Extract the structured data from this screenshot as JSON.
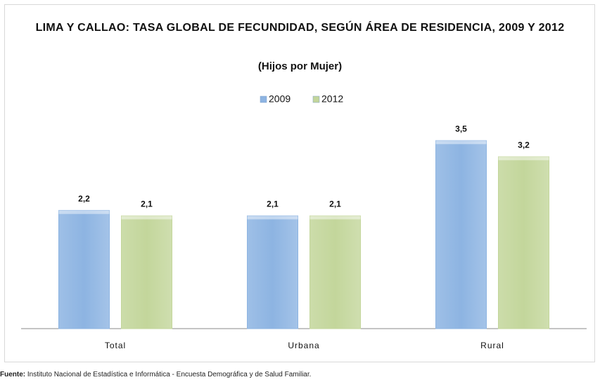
{
  "chart_data": {
    "type": "bar",
    "title": "LIMA Y CALLAO: TASA GLOBAL DE FECUNDIDAD, SEGÚN ÁREA DE RESIDENCIA, 2009 Y 2012",
    "subtitle": "(Hijos por Mujer)",
    "categories": [
      "Total",
      "Urbana",
      "Rural"
    ],
    "series": [
      {
        "name": "2009",
        "color": "#8db4e2",
        "values": [
          2.2,
          2.1,
          3.5
        ],
        "value_labels": [
          "2,2",
          "2,1",
          "3,5"
        ]
      },
      {
        "name": "2012",
        "color": "#c3d69b",
        "values": [
          2.1,
          2.1,
          3.2
        ],
        "value_labels": [
          "2,1",
          "2,1",
          "3,2"
        ]
      }
    ],
    "ylim": [
      0,
      4
    ],
    "legend": "top",
    "source": {
      "label": "Fuente:",
      "text": "Instituto Nacional de Estadística e Informática - Encuesta Demográfica y de Salud Familiar."
    }
  }
}
